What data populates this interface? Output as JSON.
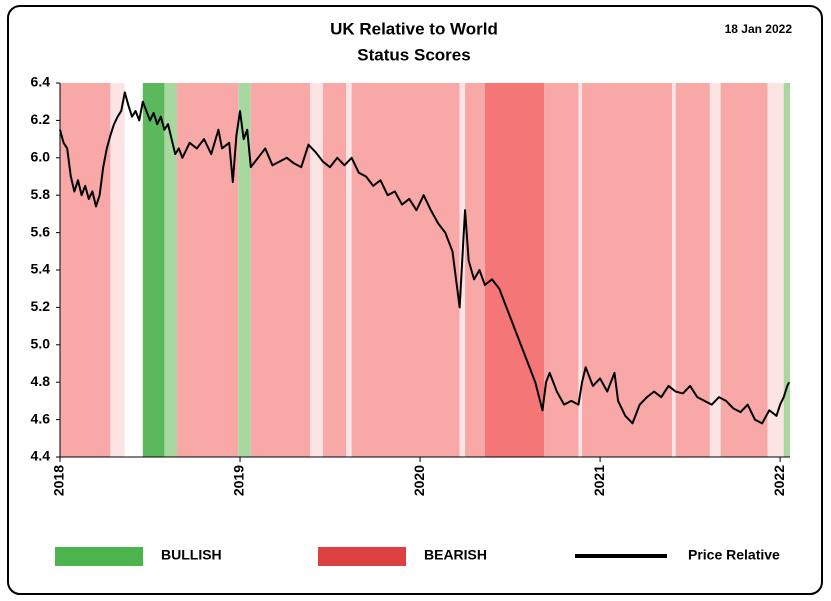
{
  "chart_data": {
    "type": "line",
    "title": [
      "UK Relative to World",
      "Status Scores"
    ],
    "date": "18 Jan 2022",
    "xlim": [
      2018,
      2022.055
    ],
    "xticks": [
      2018,
      2019,
      2020,
      2021,
      2022
    ],
    "ylim": [
      4.4,
      6.4
    ],
    "yticks": [
      4.4,
      4.6,
      4.8,
      {
        "value": 5.0,
        "label": "5.0"
      },
      5.2,
      5.4,
      5.6,
      5.8,
      {
        "value": 6.0,
        "label": "6.0"
      },
      6.2,
      6.4
    ],
    "grid": false,
    "bands": {
      "start": [
        2018.0,
        2018.28,
        2018.36,
        2018.46,
        2018.58,
        2018.65,
        2018.99,
        2019.06,
        2019.39,
        2019.46,
        2019.59,
        2019.62,
        2020.22,
        2020.25,
        2020.36,
        2020.69,
        2020.88,
        2020.9,
        2021.4,
        2021.42,
        2021.61,
        2021.67,
        2021.93,
        2022.02
      ],
      "end": [
        2018.28,
        2018.36,
        2018.46,
        2018.58,
        2018.65,
        2018.99,
        2019.06,
        2019.39,
        2019.46,
        2019.59,
        2019.62,
        2020.22,
        2020.25,
        2020.36,
        2020.69,
        2020.88,
        2020.9,
        2021.4,
        2021.42,
        2021.61,
        2021.67,
        2021.93,
        2022.02,
        2022.055
      ],
      "colors": [
        "#f9a8a8",
        "#fde4e4",
        "#ffffff",
        "#5cb85c",
        "#a8d8a0",
        "#f9a8a8",
        "#a8d8a0",
        "#f9a8a8",
        "#fde4e4",
        "#f9a8a8",
        "#fde4e4",
        "#f9a8a8",
        "#fde4e4",
        "#f9a8a8",
        "#f47676",
        "#f9a8a8",
        "#fde4e4",
        "#f9a8a8",
        "#fde4e4",
        "#f9a8a8",
        "#fde4e4",
        "#f9a8a8",
        "#fde4e4",
        "#a8d8a0"
      ]
    },
    "legend_items": [
      {
        "name": "BULLISH",
        "color": "#4cb44c"
      },
      {
        "name": "BEARISH",
        "color": "#dc4040"
      }
    ],
    "series": [
      {
        "name": "Price Relative",
        "color": "#000000",
        "x": [
          2018.0,
          2018.02,
          2018.04,
          2018.06,
          2018.08,
          2018.1,
          2018.12,
          2018.14,
          2018.16,
          2018.18,
          2018.2,
          2018.22,
          2018.24,
          2018.26,
          2018.28,
          2018.3,
          2018.32,
          2018.34,
          2018.36,
          2018.38,
          2018.4,
          2018.42,
          2018.44,
          2018.46,
          2018.48,
          2018.5,
          2018.52,
          2018.54,
          2018.56,
          2018.58,
          2018.6,
          2018.62,
          2018.64,
          2018.66,
          2018.68,
          2018.72,
          2018.76,
          2018.8,
          2018.84,
          2018.88,
          2018.9,
          2018.94,
          2018.96,
          2018.98,
          2019.0,
          2019.02,
          2019.04,
          2019.06,
          2019.1,
          2019.14,
          2019.18,
          2019.22,
          2019.26,
          2019.3,
          2019.34,
          2019.38,
          2019.42,
          2019.46,
          2019.5,
          2019.54,
          2019.58,
          2019.62,
          2019.66,
          2019.7,
          2019.74,
          2019.78,
          2019.82,
          2019.86,
          2019.9,
          2019.94,
          2019.98,
          2020.02,
          2020.06,
          2020.1,
          2020.14,
          2020.18,
          2020.2,
          2020.22,
          2020.24,
          2020.25,
          2020.27,
          2020.3,
          2020.33,
          2020.36,
          2020.4,
          2020.44,
          2020.48,
          2020.52,
          2020.56,
          2020.6,
          2020.64,
          2020.68,
          2020.7,
          2020.72,
          2020.76,
          2020.8,
          2020.84,
          2020.88,
          2020.9,
          2020.92,
          2020.96,
          2021.0,
          2021.04,
          2021.08,
          2021.1,
          2021.14,
          2021.18,
          2021.22,
          2021.26,
          2021.3,
          2021.34,
          2021.38,
          2021.42,
          2021.46,
          2021.5,
          2021.54,
          2021.58,
          2021.62,
          2021.66,
          2021.7,
          2021.74,
          2021.78,
          2021.82,
          2021.86,
          2021.9,
          2021.94,
          2021.98,
          2022.0,
          2022.02,
          2022.04,
          2022.05
        ],
        "values": [
          6.15,
          6.08,
          6.05,
          5.9,
          5.82,
          5.88,
          5.8,
          5.85,
          5.78,
          5.82,
          5.74,
          5.8,
          5.95,
          6.05,
          6.12,
          6.18,
          6.22,
          6.25,
          6.35,
          6.28,
          6.22,
          6.25,
          6.2,
          6.3,
          6.25,
          6.2,
          6.24,
          6.18,
          6.22,
          6.15,
          6.18,
          6.1,
          6.02,
          6.05,
          6.0,
          6.08,
          6.05,
          6.1,
          6.02,
          6.15,
          6.05,
          6.08,
          5.87,
          6.12,
          6.25,
          6.1,
          6.15,
          5.95,
          6.0,
          6.05,
          5.96,
          5.98,
          6.0,
          5.97,
          5.95,
          6.07,
          6.03,
          5.98,
          5.95,
          6.0,
          5.96,
          6.0,
          5.92,
          5.9,
          5.85,
          5.88,
          5.8,
          5.82,
          5.75,
          5.78,
          5.72,
          5.8,
          5.72,
          5.65,
          5.6,
          5.5,
          5.35,
          5.2,
          5.55,
          5.72,
          5.45,
          5.35,
          5.4,
          5.32,
          5.35,
          5.3,
          5.2,
          5.1,
          5.0,
          4.9,
          4.8,
          4.65,
          4.8,
          4.85,
          4.75,
          4.68,
          4.7,
          4.68,
          4.8,
          4.88,
          4.78,
          4.82,
          4.75,
          4.85,
          4.7,
          4.62,
          4.58,
          4.68,
          4.72,
          4.75,
          4.72,
          4.78,
          4.75,
          4.74,
          4.78,
          4.72,
          4.7,
          4.68,
          4.72,
          4.7,
          4.66,
          4.64,
          4.68,
          4.6,
          4.58,
          4.65,
          4.62,
          4.68,
          4.72,
          4.78,
          4.8
        ]
      }
    ]
  }
}
